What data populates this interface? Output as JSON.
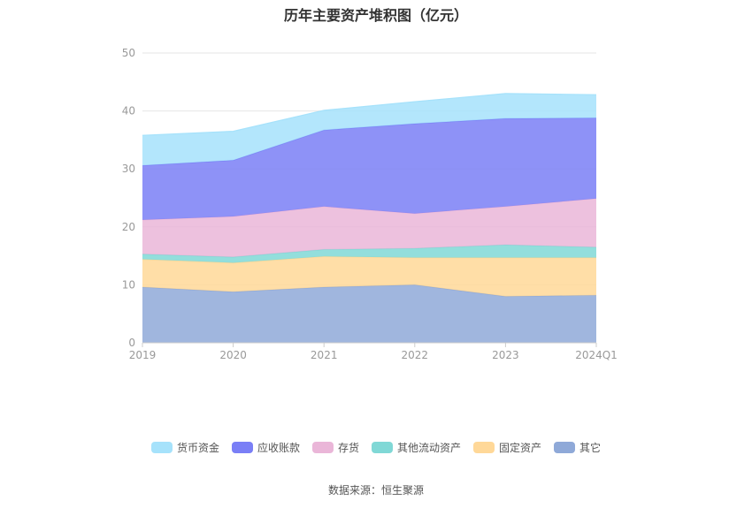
{
  "chart_data": {
    "type": "area",
    "stacked": true,
    "title": "历年主要资产堆积图（亿元）",
    "x": [
      "2019",
      "2020",
      "2021",
      "2022",
      "2023",
      "2024Q1"
    ],
    "ylim": [
      0,
      50
    ],
    "yticks": [
      0,
      10,
      20,
      30,
      40,
      50
    ],
    "grid": true,
    "legend_position": "bottom",
    "series": [
      {
        "name": "其它",
        "color": "#8fa9d8",
        "values": [
          9.6,
          8.8,
          9.6,
          10.0,
          8.0,
          8.2
        ]
      },
      {
        "name": "固定资产",
        "color": "#ffd898",
        "values": [
          4.8,
          5.0,
          5.3,
          4.7,
          6.7,
          6.5
        ]
      },
      {
        "name": "其他流动资产",
        "color": "#80d8d6",
        "values": [
          0.9,
          1.0,
          1.2,
          1.6,
          2.2,
          1.8
        ]
      },
      {
        "name": "存货",
        "color": "#eab6d8",
        "values": [
          5.9,
          7.0,
          7.4,
          6.0,
          6.6,
          8.4
        ]
      },
      {
        "name": "应收账款",
        "color": "#7a7ff6",
        "values": [
          9.4,
          9.7,
          13.2,
          15.5,
          15.2,
          13.9
        ]
      },
      {
        "name": "货币资金",
        "color": "#a6e2fb",
        "values": [
          5.2,
          5.0,
          3.4,
          3.8,
          4.3,
          4.0
        ]
      }
    ],
    "legend_order": [
      "货币资金",
      "应收账款",
      "存货",
      "其他流动资产",
      "固定资产",
      "其它"
    ]
  },
  "source_text": "数据来源：恒生聚源"
}
